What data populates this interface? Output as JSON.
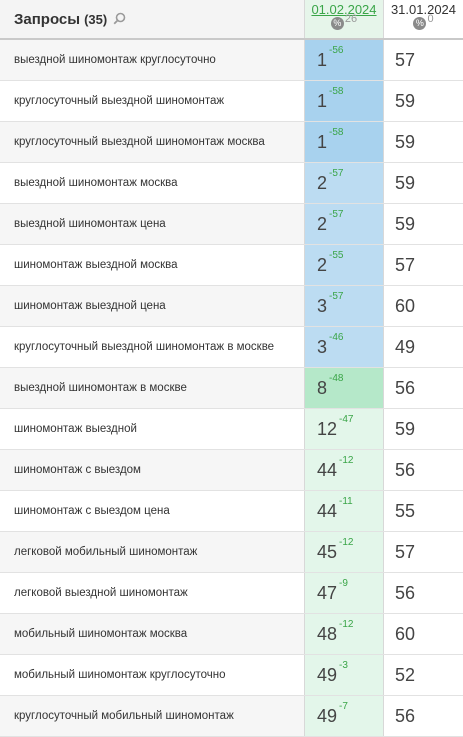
{
  "header": {
    "title": "Запросы",
    "count": "(35)",
    "date1": "01.02.2024",
    "date1_sub": "26",
    "date2": "31.01.2024",
    "date2_sub": "0",
    "pct_symbol": "%"
  },
  "colors": {
    "top3": "#a8d2ee",
    "top7": "#bcdcf2",
    "top10": "#b5e8c9",
    "top50": "#e3f6ea",
    "delta_green": "#3aa548"
  },
  "rows": [
    {
      "query": "выездной шиномонтаж круглосуточно",
      "pos": "1",
      "delta": "-56",
      "prev": "57",
      "level": "top3"
    },
    {
      "query": "круглосуточный выездной шиномонтаж",
      "pos": "1",
      "delta": "-58",
      "prev": "59",
      "level": "top3"
    },
    {
      "query": "круглосуточный выездной шиномонтаж москва",
      "pos": "1",
      "delta": "-58",
      "prev": "59",
      "level": "top3"
    },
    {
      "query": "выездной шиномонтаж москва",
      "pos": "2",
      "delta": "-57",
      "prev": "59",
      "level": "top7"
    },
    {
      "query": "выездной шиномонтаж цена",
      "pos": "2",
      "delta": "-57",
      "prev": "59",
      "level": "top7"
    },
    {
      "query": "шиномонтаж выездной москва",
      "pos": "2",
      "delta": "-55",
      "prev": "57",
      "level": "top7"
    },
    {
      "query": "шиномонтаж выездной цена",
      "pos": "3",
      "delta": "-57",
      "prev": "60",
      "level": "top7"
    },
    {
      "query": "круглосуточный выездной шиномонтаж в москве",
      "pos": "3",
      "delta": "-46",
      "prev": "49",
      "level": "top7"
    },
    {
      "query": "выездной шиномонтаж в москве",
      "pos": "8",
      "delta": "-48",
      "prev": "56",
      "level": "top10"
    },
    {
      "query": "шиномонтаж выездной",
      "pos": "12",
      "delta": "-47",
      "prev": "59",
      "level": "top50"
    },
    {
      "query": "шиномонтаж с выездом",
      "pos": "44",
      "delta": "-12",
      "prev": "56",
      "level": "top50"
    },
    {
      "query": "шиномонтаж с выездом цена",
      "pos": "44",
      "delta": "-11",
      "prev": "55",
      "level": "top50"
    },
    {
      "query": "легковой мобильный шиномонтаж",
      "pos": "45",
      "delta": "-12",
      "prev": "57",
      "level": "top50"
    },
    {
      "query": "легковой выездной шиномонтаж",
      "pos": "47",
      "delta": "-9",
      "prev": "56",
      "level": "top50"
    },
    {
      "query": "мобильный шиномонтаж москва",
      "pos": "48",
      "delta": "-12",
      "prev": "60",
      "level": "top50"
    },
    {
      "query": "мобильный шиномонтаж круглосуточно",
      "pos": "49",
      "delta": "-3",
      "prev": "52",
      "level": "top50"
    },
    {
      "query": "круглосуточный мобильный шиномонтаж",
      "pos": "49",
      "delta": "-7",
      "prev": "56",
      "level": "top50"
    }
  ]
}
